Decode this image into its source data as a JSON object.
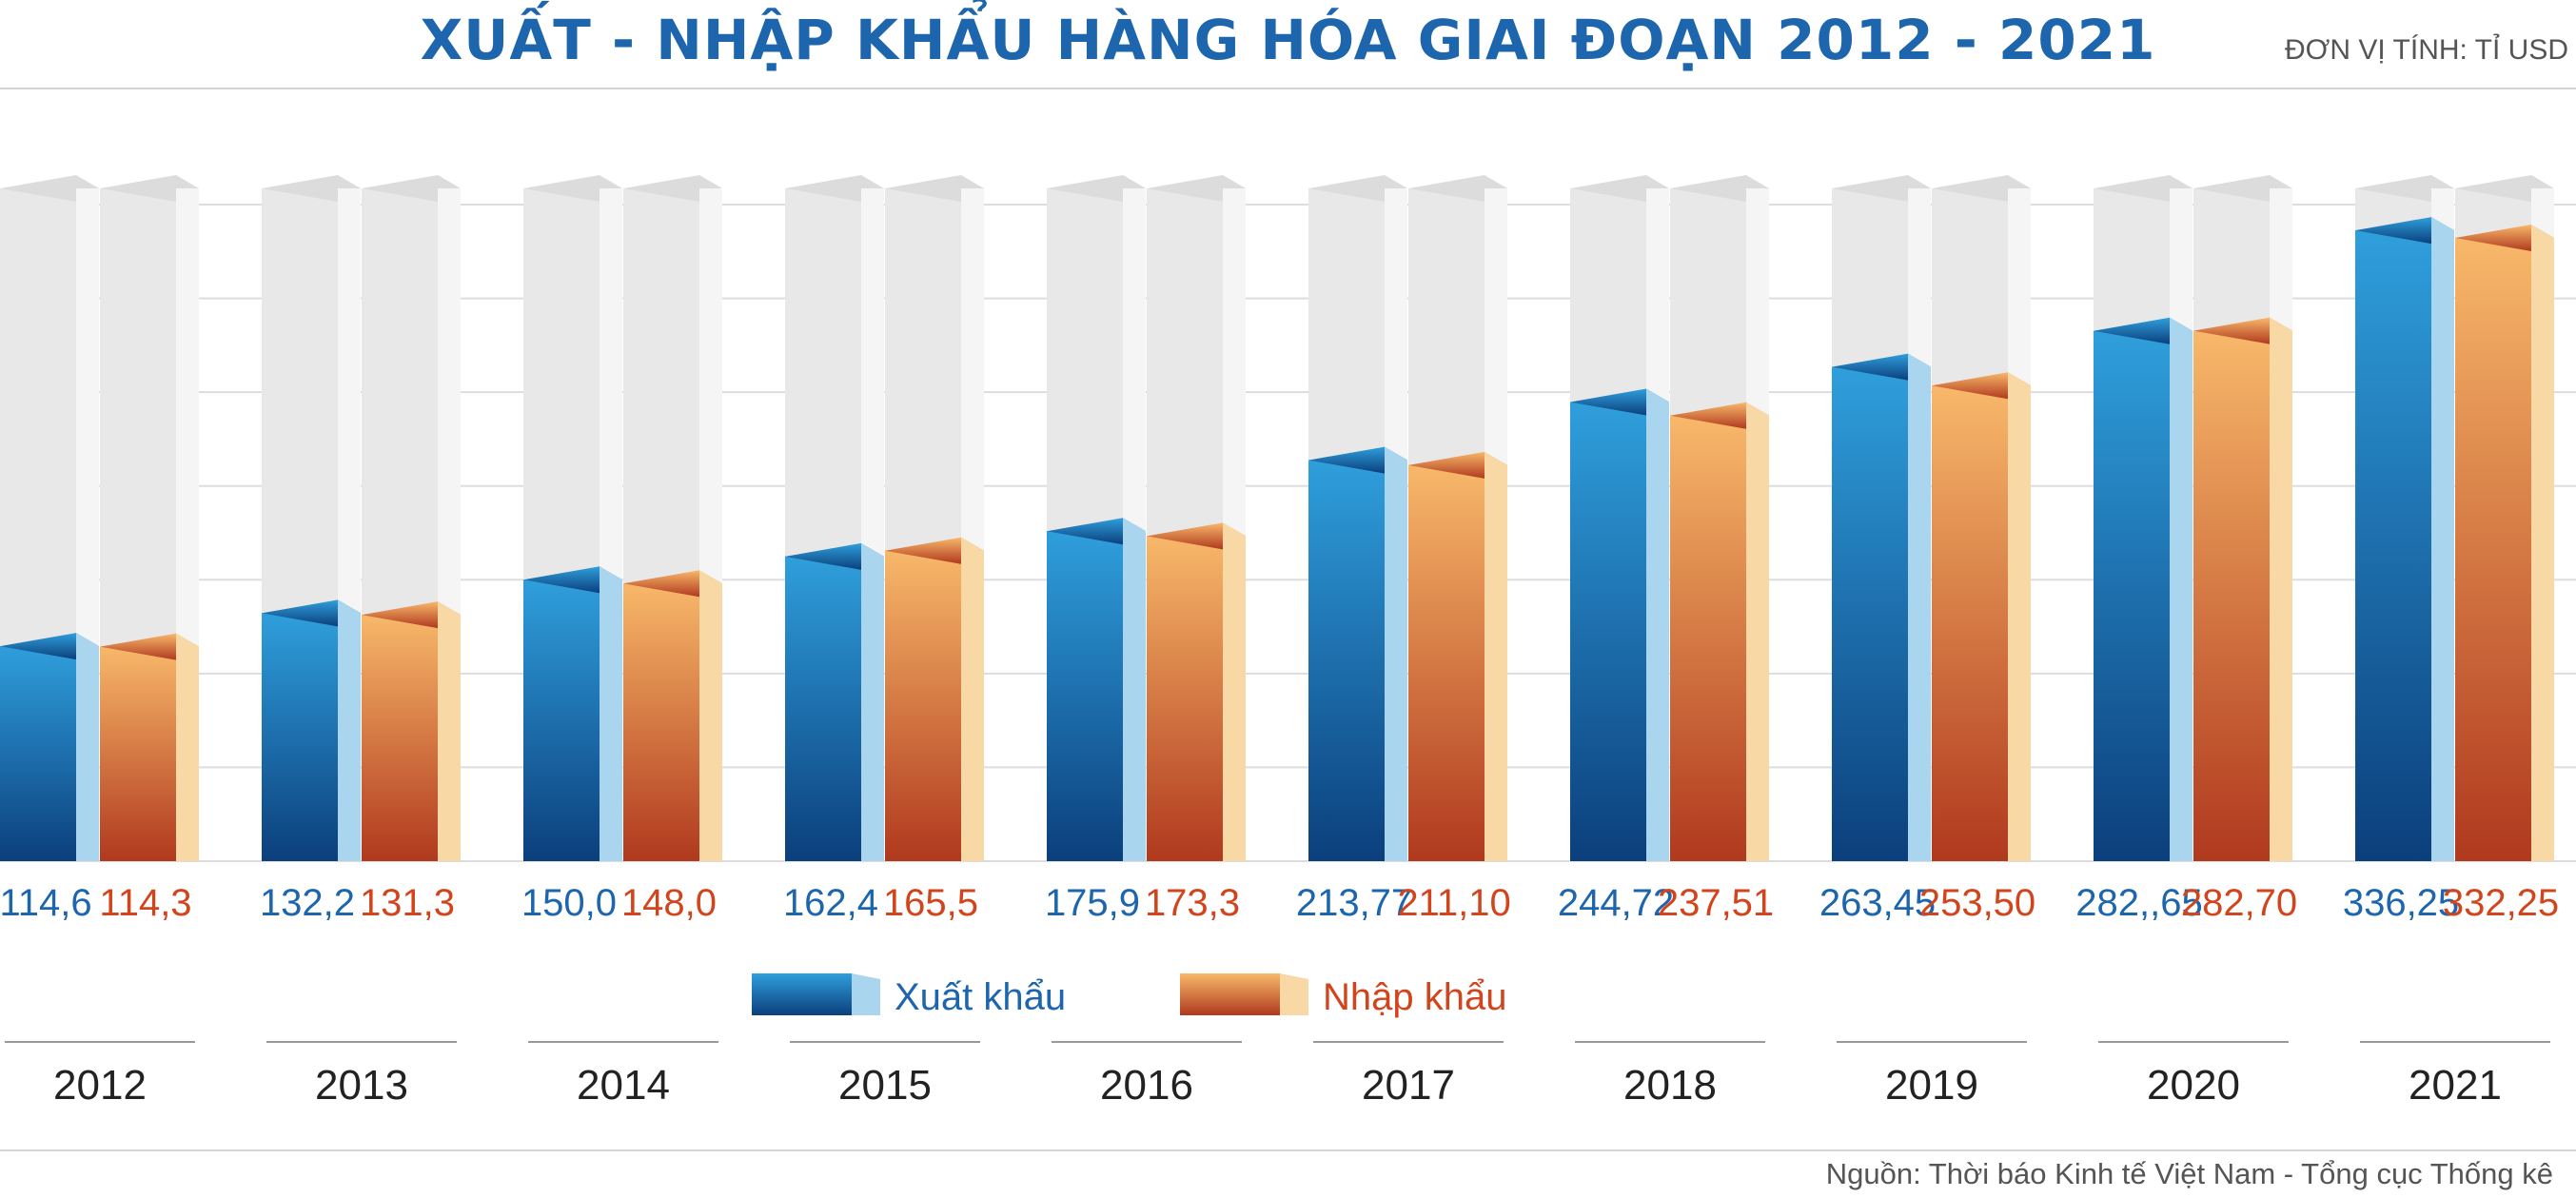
{
  "title": "XUẤT - NHẬP KHẨU HÀNG HÓA GIAI ĐOẠN 2012 - 2021",
  "unit": "ĐƠN VỊ TÍNH: TỈ USD",
  "source": "Nguồn: Thời báo Kinh tế Việt Nam - Tổng cục Thống kê",
  "colors": {
    "export_top": "#2f9fdc",
    "export_bottom": "#0b3f7c",
    "export_side": "#a9d6ee",
    "import_top": "#f8b86a",
    "import_bottom": "#b0391e",
    "import_side": "#f8d8a4",
    "export_label": "#1d66ad",
    "import_label": "#d2441c",
    "track": "#e8e8e8",
    "track_side": "#f5f5f5"
  },
  "chart_data": {
    "type": "bar",
    "categories": [
      "2012",
      "2013",
      "2014",
      "2015",
      "2016",
      "2017",
      "2018",
      "2019",
      "2020",
      "2021"
    ],
    "series": [
      {
        "name": "Xuất khẩu",
        "values": [
          114.6,
          132.2,
          150.0,
          162.4,
          175.9,
          213.77,
          244.72,
          263.45,
          282.65,
          336.25
        ],
        "labels": [
          "114,6",
          "132,2",
          "150,0",
          "162,4",
          "175,9",
          "213,77",
          "244,72",
          "263,45",
          "282,,65",
          "336,25"
        ]
      },
      {
        "name": "Nhập khẩu",
        "values": [
          114.3,
          131.3,
          148.0,
          165.5,
          173.3,
          211.1,
          237.51,
          253.5,
          282.7,
          332.25
        ],
        "labels": [
          "114,3",
          "131,3",
          "148,0",
          "165,5",
          "173,3",
          "211,10",
          "237,51",
          "253,50",
          "282,70",
          "332,25"
        ]
      }
    ],
    "ylim": [
      0,
      350
    ],
    "grid": true,
    "legend": "bottom-center"
  }
}
